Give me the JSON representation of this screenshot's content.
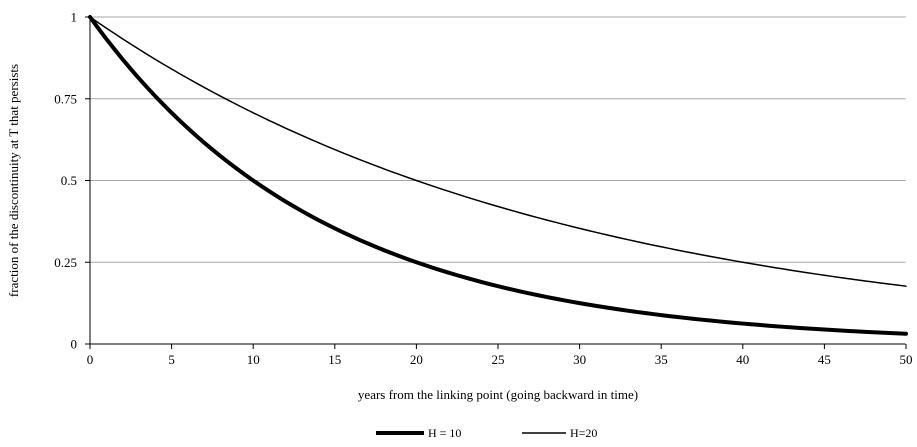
{
  "chart_data": {
    "type": "line",
    "title": "",
    "xlabel": "years from the linking point (going backward in time)",
    "ylabel": "fraction of the discontinuity at T that persists",
    "xlim": [
      0,
      50
    ],
    "ylim": [
      0,
      1
    ],
    "x_ticks": [
      0,
      5,
      10,
      15,
      20,
      25,
      30,
      35,
      40,
      45,
      50
    ],
    "x_tick_labels": [
      "0",
      "5",
      "10",
      "15",
      "20",
      "25",
      "30",
      "35",
      "40",
      "45",
      "50"
    ],
    "y_ticks": [
      0,
      0.25,
      0.5,
      0.75,
      1
    ],
    "y_tick_labels": [
      "0",
      "0.25",
      "0.5",
      "0.75",
      "1"
    ],
    "grid": "horizontal",
    "legend_position": "bottom-center",
    "x": [
      0,
      5,
      10,
      15,
      20,
      25,
      30,
      35,
      40,
      45,
      50
    ],
    "series": [
      {
        "name": "H = 10",
        "values": [
          1,
          0.7071,
          0.5,
          0.3536,
          0.25,
          0.1768,
          0.125,
          0.0884,
          0.0625,
          0.0442,
          0.0313
        ],
        "color": "#000000",
        "style": "thick"
      },
      {
        "name": "H=20",
        "values": [
          1,
          0.8409,
          0.7071,
          0.5946,
          0.5,
          0.4204,
          0.3536,
          0.2973,
          0.25,
          0.2102,
          0.1768
        ],
        "color": "#000000",
        "style": "thin"
      }
    ]
  }
}
